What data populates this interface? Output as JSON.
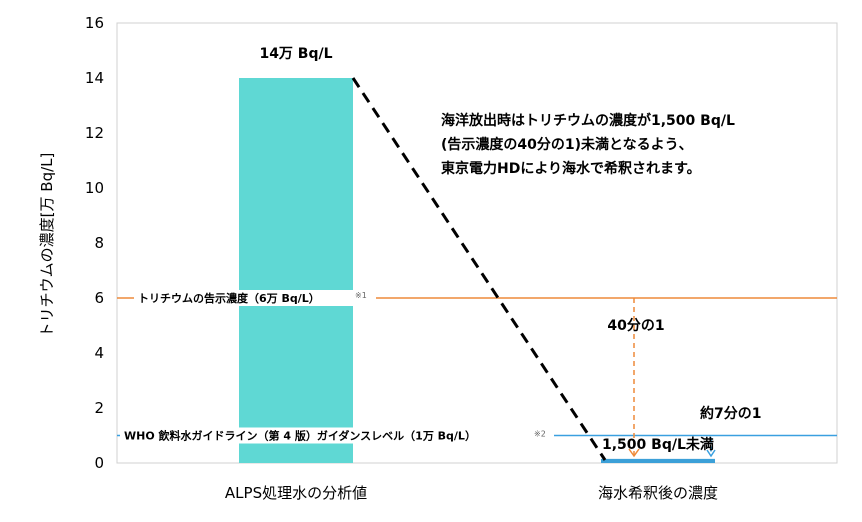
{
  "chart_data": {
    "type": "bar",
    "ylabel": "トリチウムの濃度[万 Bq/L]",
    "ylim": [
      0,
      16
    ],
    "yticks": [
      0,
      2,
      4,
      6,
      8,
      10,
      12,
      14,
      16
    ],
    "categories": [
      "ALPS処理水の分析値",
      "海水希釈後の濃度"
    ],
    "values": [
      14,
      0.15
    ],
    "bar_colors": [
      "#5fd8d4",
      "#3ca0d8"
    ],
    "data_labels": [
      "14万 Bq/L",
      "1,500 Bq/L未満"
    ],
    "grid": false,
    "reference_lines": [
      {
        "value": 6,
        "label": "トリチウムの告示濃度（6万 Bq/L）",
        "note": "※1",
        "color": "#ee8a3a"
      },
      {
        "value": 1,
        "label": "WHO 飲料水ガイドライン（第 4 版）ガイダンスレベル（1万 Bq/L）",
        "note": "※2",
        "color": "#3aa0e0"
      }
    ],
    "annotations": {
      "dilution_text": [
        "海洋放出時はトリチウムの濃度が1,500 Bq/L",
        "(告示濃度の40分の1)未満となるよう、",
        "東京電力HDにより海水で希釈されます。"
      ],
      "ratio_notice": "40分の1",
      "ratio_who": "約7分の1"
    }
  }
}
